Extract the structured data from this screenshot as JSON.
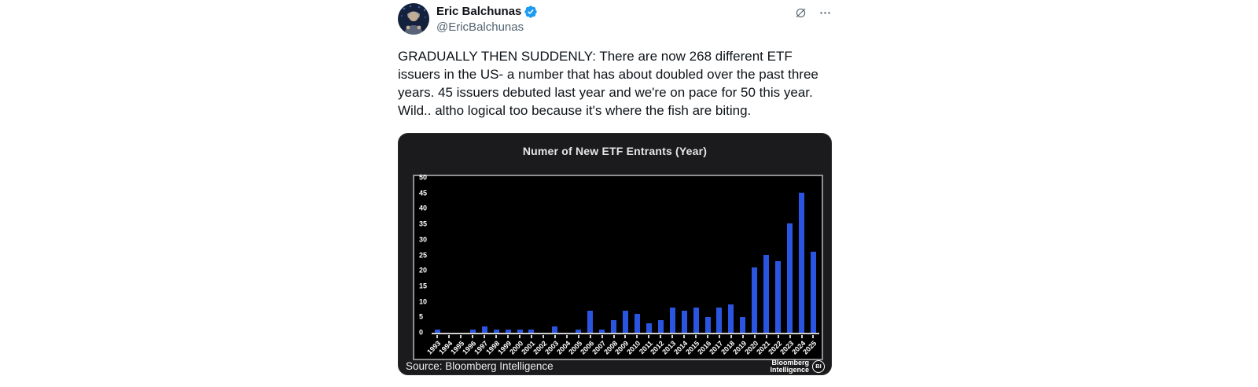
{
  "tweet": {
    "author": {
      "name": "Eric Balchunas",
      "handle": "@EricBalchunas",
      "verified_badge_color": "#1d9bf0"
    },
    "body": "GRADUALLY THEN SUDDENLY: There are now 268 different ETF issuers in the US- a number that has about doubled over the past three years. 45 issuers debuted last year and we're on pace for 50 this year. Wild.. altho logical too because it's where the fish are biting.",
    "action_icons": {
      "grok": "grok-slashed-circle",
      "more": "ellipsis"
    }
  },
  "chart_data": {
    "type": "bar",
    "title": "Numer of New ETF Entrants (Year)",
    "categories": [
      "1993",
      "1994",
      "1995",
      "1996",
      "1997",
      "1998",
      "1999",
      "2000",
      "2001",
      "2002",
      "2003",
      "2004",
      "2005",
      "2006",
      "2007",
      "2008",
      "2009",
      "2010",
      "2011",
      "2012",
      "2013",
      "2014",
      "2015",
      "2016",
      "2017",
      "2018",
      "2019",
      "2020",
      "2021",
      "2022",
      "2023",
      "2024",
      "2025"
    ],
    "values": [
      1,
      0,
      0,
      1,
      2,
      1,
      1,
      1,
      1,
      0,
      2,
      0,
      1,
      7,
      1,
      4,
      7,
      6,
      3,
      4,
      8,
      7,
      8,
      5,
      8,
      9,
      5,
      21,
      25,
      23,
      35,
      45,
      26
    ],
    "ylim": [
      0,
      50
    ],
    "yticks": [
      0,
      5,
      10,
      15,
      20,
      25,
      30,
      35,
      40,
      45,
      50
    ],
    "xlabel": "",
    "ylabel": "",
    "grid": false,
    "legend": false,
    "bar_color": "#2a55e0",
    "plot_background": "#000000",
    "card_background": "#1b1b1d",
    "source": "Source: Bloomberg Intelligence",
    "brand": {
      "line1": "Bloomberg",
      "line2": "Intelligence",
      "badge": "BI"
    }
  }
}
